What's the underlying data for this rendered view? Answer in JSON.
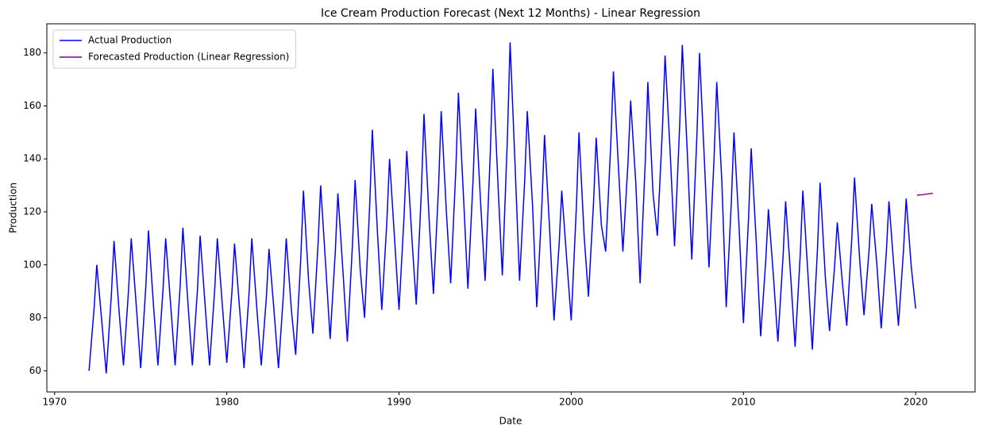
{
  "chart_data": {
    "type": "line",
    "title": "Ice Cream Production Forecast (Next 12 Months) - Linear Regression",
    "x_label": "Date",
    "y_label": "Production",
    "xlim": [
      1969.55,
      2023.45
    ],
    "ylim": [
      52,
      191
    ],
    "xticks": [
      1970,
      1980,
      1990,
      2000,
      2010,
      2020
    ],
    "yticks": [
      60,
      80,
      100,
      120,
      140,
      160,
      180
    ],
    "legend": "upper left",
    "grid": false,
    "series": [
      {
        "name": "Actual Production",
        "color": "#0000ff",
        "x": [
          1972,
          1972.3,
          1972.45,
          1972.75,
          1973,
          1973.3,
          1973.45,
          1973.75,
          1974,
          1974.3,
          1974.45,
          1974.75,
          1975,
          1975.3,
          1975.45,
          1975.75,
          1976,
          1976.3,
          1976.45,
          1976.75,
          1977,
          1977.3,
          1977.45,
          1977.75,
          1978,
          1978.3,
          1978.45,
          1978.75,
          1979,
          1979.3,
          1979.45,
          1979.75,
          1980,
          1980.3,
          1980.45,
          1980.75,
          1981,
          1981.3,
          1981.45,
          1981.75,
          1982,
          1982.3,
          1982.45,
          1982.75,
          1983,
          1983.3,
          1983.45,
          1983.75,
          1984,
          1984.3,
          1984.45,
          1984.75,
          1985,
          1985.3,
          1985.45,
          1985.75,
          1986,
          1986.3,
          1986.45,
          1986.75,
          1987,
          1987.3,
          1987.45,
          1987.75,
          1988,
          1988.3,
          1988.45,
          1988.75,
          1989,
          1989.3,
          1989.45,
          1989.75,
          1990,
          1990.3,
          1990.45,
          1990.75,
          1991,
          1991.3,
          1991.45,
          1991.75,
          1992,
          1992.3,
          1992.45,
          1992.75,
          1993,
          1993.3,
          1993.45,
          1993.75,
          1994,
          1994.3,
          1994.45,
          1994.75,
          1995,
          1995.3,
          1995.45,
          1995.75,
          1996,
          1996.3,
          1996.45,
          1996.75,
          1997,
          1997.3,
          1997.45,
          1997.75,
          1998,
          1998.3,
          1998.45,
          1998.75,
          1999,
          1999.3,
          1999.45,
          1999.75,
          2000,
          2000.3,
          2000.45,
          2000.75,
          2001,
          2001.3,
          2001.45,
          2001.75,
          2002,
          2002.3,
          2002.45,
          2002.75,
          2003,
          2003.3,
          2003.45,
          2003.75,
          2004,
          2004.3,
          2004.45,
          2004.75,
          2005,
          2005.3,
          2005.45,
          2005.75,
          2006,
          2006.3,
          2006.45,
          2006.75,
          2007,
          2007.3,
          2007.45,
          2007.75,
          2008,
          2008.3,
          2008.45,
          2008.75,
          2009,
          2009.3,
          2009.45,
          2009.75,
          2010,
          2010.3,
          2010.45,
          2010.75,
          2011,
          2011.3,
          2011.45,
          2011.75,
          2012,
          2012.3,
          2012.45,
          2012.75,
          2013,
          2013.3,
          2013.45,
          2013.75,
          2014,
          2014.3,
          2014.45,
          2014.75,
          2015,
          2015.3,
          2015.45,
          2015.75,
          2016,
          2016.3,
          2016.45,
          2016.75,
          2017,
          2017.3,
          2017.45,
          2017.75,
          2018,
          2018.3,
          2018.45,
          2018.75,
          2019,
          2019.3,
          2019.45,
          2019.75,
          2020
        ],
        "values": [
          60,
          84,
          100,
          78,
          59,
          89,
          109,
          82,
          62,
          91,
          110,
          84,
          61,
          92,
          113,
          84,
          62,
          91,
          110,
          84,
          62,
          93,
          114,
          85,
          62,
          91,
          111,
          84,
          62,
          91,
          110,
          84,
          63,
          90,
          108,
          83,
          61,
          90,
          110,
          83,
          62,
          88,
          106,
          82,
          61,
          90,
          110,
          83,
          66,
          103,
          128,
          94,
          74,
          108,
          130,
          99,
          72,
          105,
          127,
          97,
          71,
          108,
          132,
          98,
          80,
          123,
          151,
          112,
          83,
          117,
          140,
          109,
          83,
          119,
          143,
          110,
          85,
          128,
          157,
          117,
          89,
          130,
          158,
          120,
          93,
          136,
          165,
          125,
          91,
          132,
          159,
          122,
          94,
          142,
          174,
          130,
          96,
          149,
          184,
          136,
          94,
          132,
          158,
          123,
          84,
          123,
          149,
          113,
          79,
          108,
          128,
          101,
          79,
          122,
          150,
          111,
          88,
          124,
          148,
          115,
          105,
          146,
          173,
          136,
          105,
          139,
          162,
          131,
          93,
          139,
          169,
          127,
          111,
          152,
          179,
          142,
          107,
          153,
          183,
          141,
          102,
          149,
          180,
          137,
          99,
          141,
          169,
          131,
          84,
          124,
          150,
          114,
          78,
          118,
          144,
          108,
          73,
          102,
          121,
          95,
          71,
          103,
          124,
          95,
          69,
          104,
          128,
          96,
          68,
          106,
          131,
          96,
          75,
          100,
          116,
          93,
          77,
          111,
          133,
          102,
          81,
          106,
          123,
          100,
          76,
          105,
          124,
          98,
          77,
          106,
          125,
          99,
          83.5
        ]
      },
      {
        "name": "Forecasted Production (Linear Regression)",
        "color": "#800080",
        "x": [
          2020.08,
          2020.42,
          2020.75,
          2021
        ],
        "values": [
          126.3,
          126.5,
          126.8,
          127
        ]
      }
    ]
  }
}
